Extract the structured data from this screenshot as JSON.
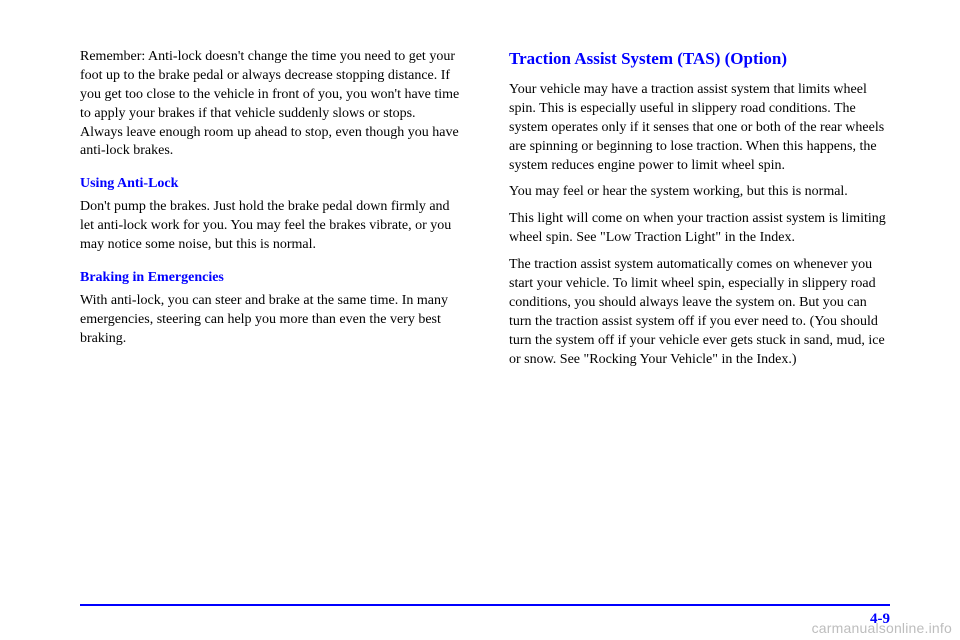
{
  "left": {
    "p1": "Remember: Anti-lock doesn't change the time you need to get your foot up to the brake pedal or always decrease stopping distance. If you get too close to the vehicle in front of you, you won't have time to apply your brakes if that vehicle suddenly slows or stops. Always leave enough room up ahead to stop, even though you have anti-lock brakes.",
    "h_using": "Using Anti-Lock",
    "p2": "Don't pump the brakes. Just hold the brake pedal down firmly and let anti-lock work for you. You may feel the brakes vibrate, or you may notice some noise, but this is normal.",
    "h_emerg": "Braking in Emergencies",
    "p3": "With anti-lock, you can steer and brake at the same time. In many emergencies, steering can help you more than even the very best braking."
  },
  "right": {
    "h_tas": "Traction Assist System (TAS) (Option)",
    "p1": "Your vehicle may have a traction assist system that limits wheel spin. This is especially useful in slippery road conditions. The system operates only if it senses that one or both of the rear wheels are spinning or beginning to lose traction. When this happens, the system reduces engine power to limit wheel spin.",
    "p2": "You may feel or hear the system working, but this is normal.",
    "p3": "This light will come on when your traction assist system is limiting wheel spin. See \"Low Traction Light\" in the Index.",
    "p4": "The traction assist system automatically comes on whenever you start your vehicle. To limit wheel spin, especially in slippery road conditions, you should always leave the system on. But you can turn the traction assist system off if you ever need to. (You should turn the system off if your vehicle ever gets stuck in sand, mud, ice or snow. See \"Rocking Your Vehicle\" in the Index.)"
  },
  "pagenum": "4-9",
  "watermark": "carmanualsonline.info"
}
